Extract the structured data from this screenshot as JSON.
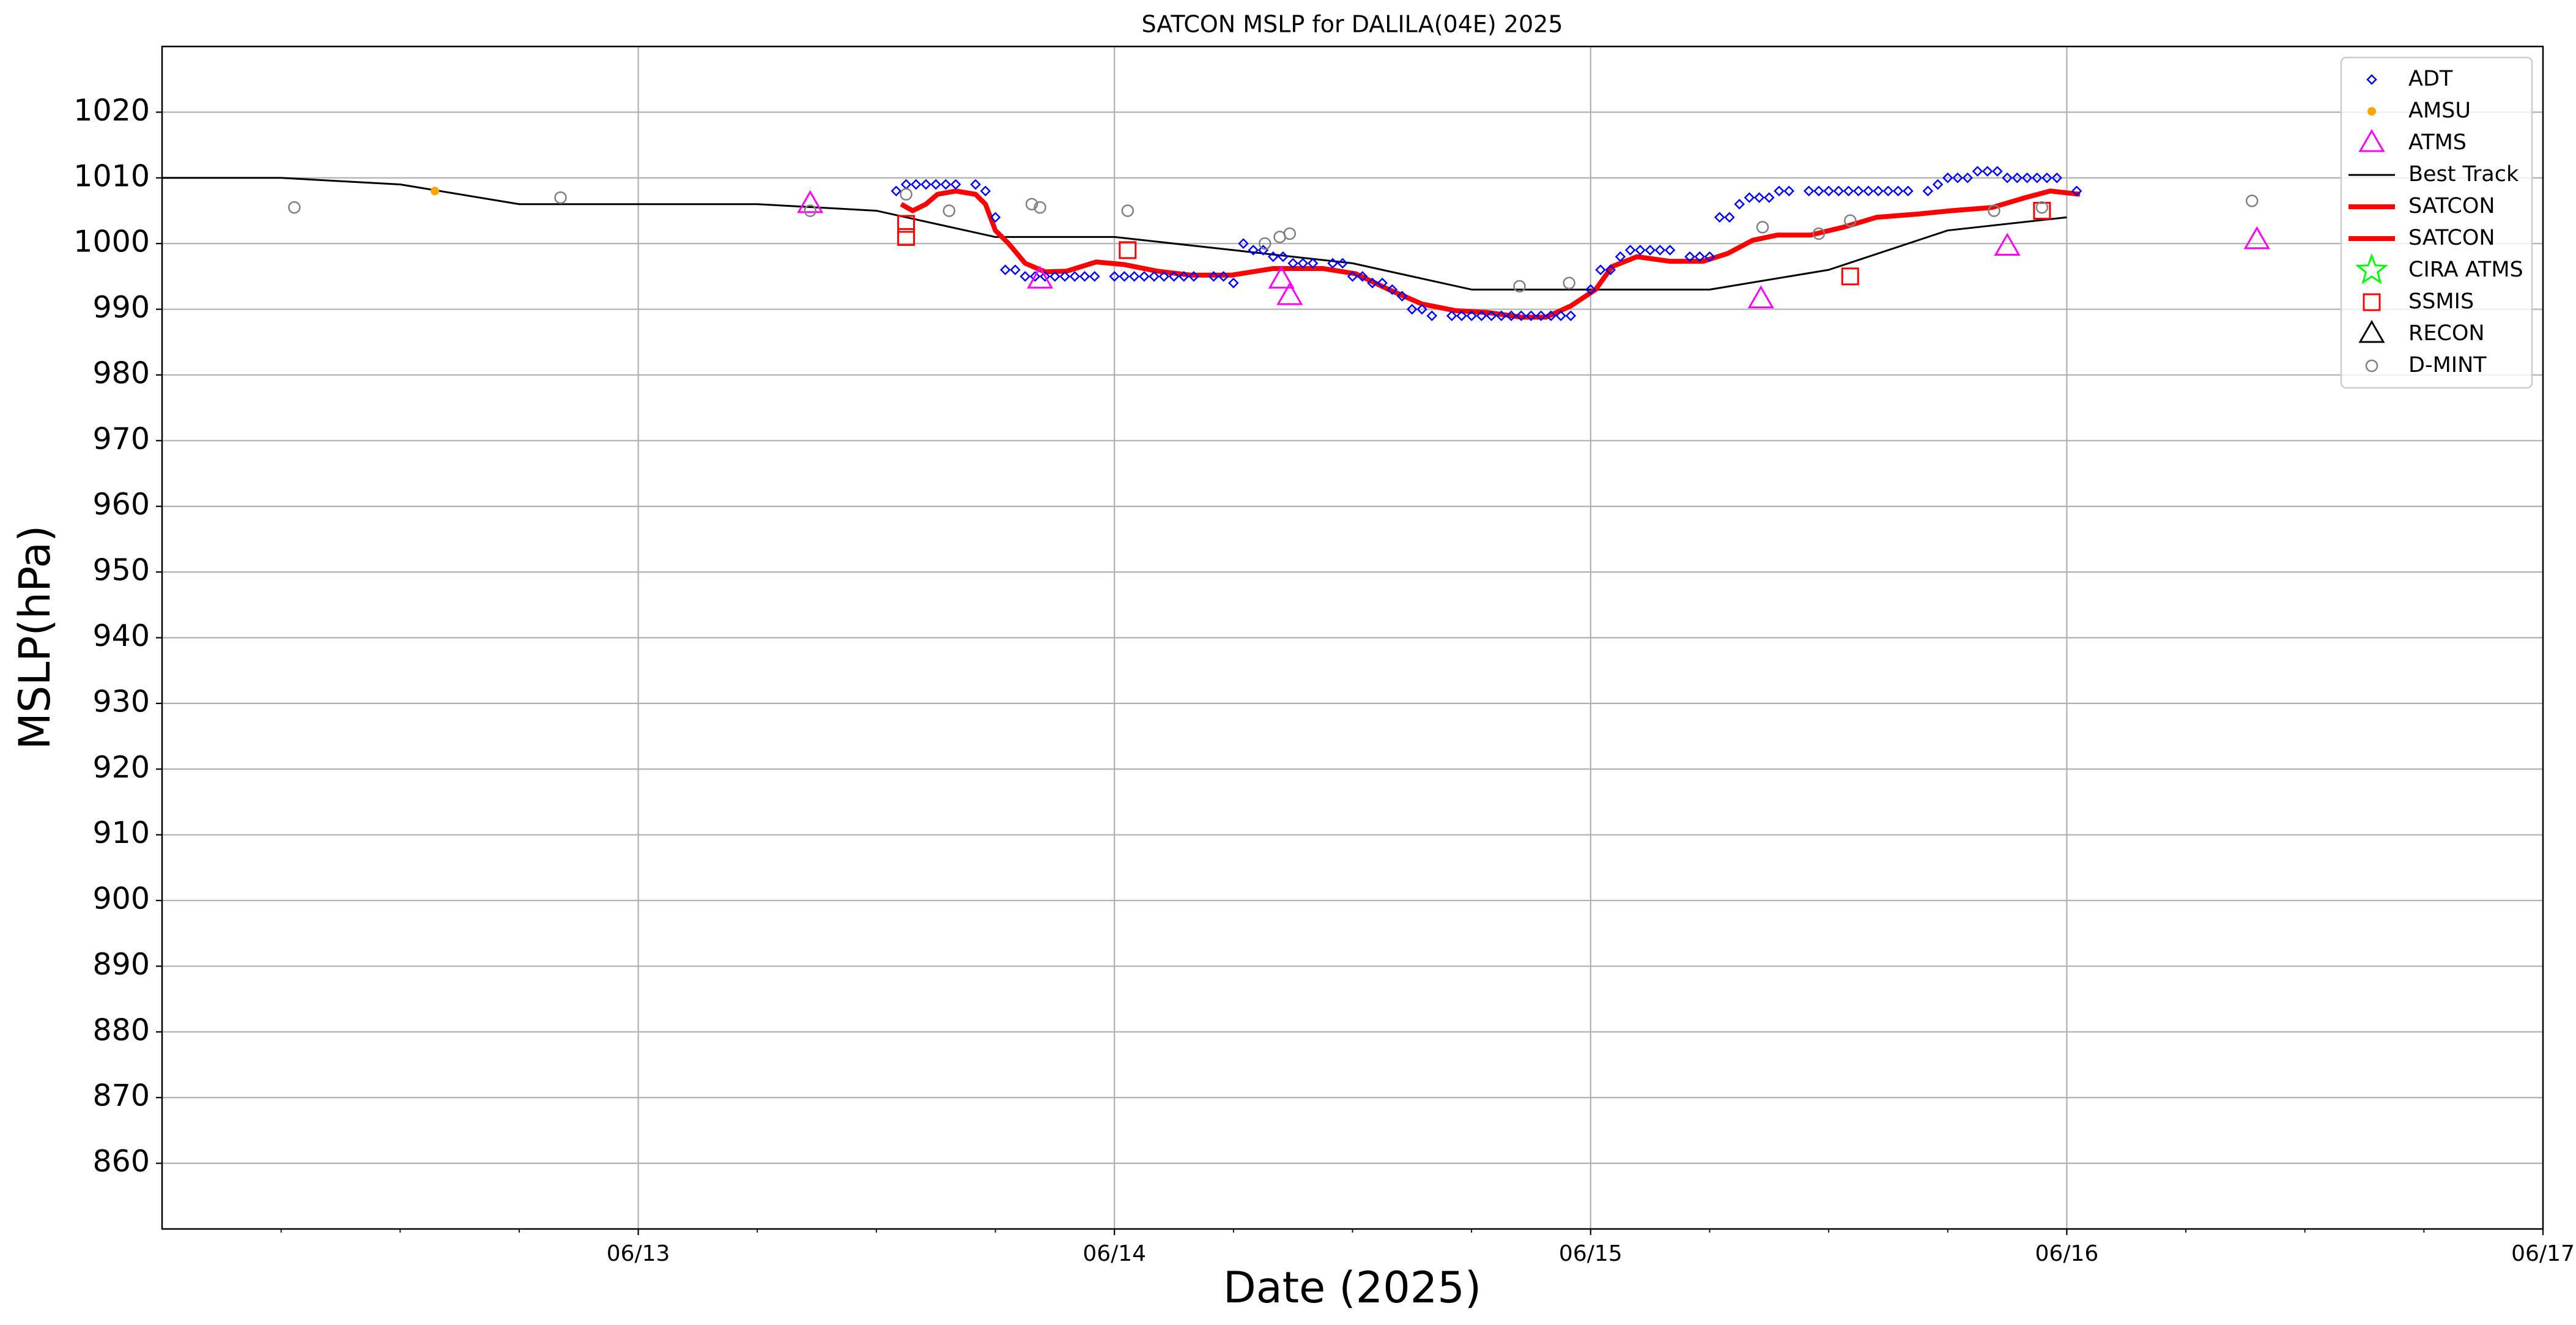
{
  "chart_data": {
    "type": "line",
    "title": "SATCON MSLP for DALILA(04E) 2025",
    "xlabel": "Date (2025)",
    "ylabel": "MSLP(hPa)",
    "xlim": [
      "06/12 00:00",
      "06/17 00:00"
    ],
    "xticks": [
      {
        "value": "06/13 00:00",
        "label": "06/13"
      },
      {
        "value": "06/14 00:00",
        "label": "06/14"
      },
      {
        "value": "06/15 00:00",
        "label": "06/15"
      },
      {
        "value": "06/16 00:00",
        "label": "06/16"
      },
      {
        "value": "06/17 00:00",
        "label": "06/17"
      }
    ],
    "xminorticks": [
      "06/12 06:00",
      "06/12 12:00",
      "06/12 18:00",
      "06/13 06:00",
      "06/13 12:00",
      "06/13 18:00",
      "06/14 06:00",
      "06/14 12:00",
      "06/14 18:00",
      "06/15 06:00",
      "06/15 12:00",
      "06/15 18:00",
      "06/16 06:00",
      "06/16 12:00",
      "06/16 18:00"
    ],
    "ylim": [
      850,
      1030
    ],
    "yticks": [
      860,
      870,
      880,
      890,
      900,
      910,
      920,
      930,
      940,
      950,
      960,
      970,
      980,
      990,
      1000,
      1010,
      1020
    ],
    "grid": true,
    "legend": "upper right",
    "series": [
      {
        "name": "ADT",
        "style": "marker",
        "marker": "diamond",
        "color": "#0000ff",
        "x": [
          "06/13 13:00",
          "06/13 13:30",
          "06/13 14:00",
          "06/13 14:30",
          "06/13 15:00",
          "06/13 15:30",
          "06/13 16:00",
          "06/13 17:00",
          "06/13 17:30",
          "06/13 18:00",
          "06/13 18:30",
          "06/13 19:00",
          "06/13 19:30",
          "06/13 20:00",
          "06/13 20:30",
          "06/13 21:00",
          "06/13 21:30",
          "06/13 22:00",
          "06/13 22:30",
          "06/13 23:00",
          "06/14 00:00",
          "06/14 00:30",
          "06/14 01:00",
          "06/14 01:30",
          "06/14 02:00",
          "06/14 02:30",
          "06/14 03:00",
          "06/14 03:30",
          "06/14 04:00",
          "06/14 05:00",
          "06/14 05:30",
          "06/14 06:00",
          "06/14 06:30",
          "06/14 07:00",
          "06/14 07:30",
          "06/14 08:00",
          "06/14 08:30",
          "06/14 09:00",
          "06/14 09:30",
          "06/14 10:00",
          "06/14 11:00",
          "06/14 11:30",
          "06/14 12:00",
          "06/14 12:30",
          "06/14 13:00",
          "06/14 13:30",
          "06/14 14:00",
          "06/14 14:30",
          "06/14 15:00",
          "06/14 15:30",
          "06/14 16:00",
          "06/14 17:00",
          "06/14 17:30",
          "06/14 18:00",
          "06/14 18:30",
          "06/14 19:00",
          "06/14 19:30",
          "06/14 20:00",
          "06/14 20:30",
          "06/14 21:00",
          "06/14 21:30",
          "06/14 22:00",
          "06/14 22:30",
          "06/14 23:00",
          "06/15 00:00",
          "06/15 00:30",
          "06/15 01:00",
          "06/15 01:30",
          "06/15 02:00",
          "06/15 02:30",
          "06/15 03:00",
          "06/15 03:30",
          "06/15 04:00",
          "06/15 05:00",
          "06/15 05:30",
          "06/15 06:00",
          "06/15 06:30",
          "06/15 07:00",
          "06/15 07:30",
          "06/15 08:00",
          "06/15 08:30",
          "06/15 09:00",
          "06/15 09:30",
          "06/15 10:00",
          "06/15 11:00",
          "06/15 11:30",
          "06/15 12:00",
          "06/15 12:30",
          "06/15 13:00",
          "06/15 13:30",
          "06/15 14:00",
          "06/15 14:30",
          "06/15 15:00",
          "06/15 15:30",
          "06/15 16:00",
          "06/15 17:00",
          "06/15 17:30",
          "06/15 18:00",
          "06/15 18:30",
          "06/15 19:00",
          "06/15 19:30",
          "06/15 20:00",
          "06/15 20:30",
          "06/15 21:00",
          "06/15 21:30",
          "06/15 22:00",
          "06/15 22:30",
          "06/15 23:00",
          "06/15 23:30",
          "06/16 00:30"
        ],
        "values": [
          1008,
          1009,
          1009,
          1009,
          1009,
          1009,
          1009,
          1009,
          1008,
          1004,
          996,
          996,
          995,
          995,
          995,
          995,
          995,
          995,
          995,
          995,
          995,
          995,
          995,
          995,
          995,
          995,
          995,
          995,
          995,
          995,
          995,
          994,
          1000,
          999,
          999,
          998,
          998,
          997,
          997,
          997,
          997,
          997,
          995,
          995,
          994,
          994,
          993,
          992,
          990,
          990,
          989,
          989,
          989,
          989,
          989,
          989,
          989,
          989,
          989,
          989,
          989,
          989,
          989,
          989,
          993,
          996,
          996,
          998,
          999,
          999,
          999,
          999,
          999,
          998,
          998,
          998,
          1004,
          1004,
          1006,
          1007,
          1007,
          1007,
          1008,
          1008,
          1008,
          1008,
          1008,
          1008,
          1008,
          1008,
          1008,
          1008,
          1008,
          1008,
          1008,
          1008,
          1009,
          1010,
          1010,
          1010,
          1011,
          1011,
          1011,
          1010,
          1010,
          1010,
          1010,
          1010,
          1010,
          1008
        ]
      },
      {
        "name": "AMSU",
        "style": "marker",
        "marker": "dot",
        "color": "#ffa500",
        "x": [
          "06/12 13:45"
        ],
        "values": [
          1008
        ]
      },
      {
        "name": "ATMS",
        "style": "marker",
        "marker": "triangle",
        "color": "#ff00ff",
        "x": [
          "06/13 08:40",
          "06/13 20:15",
          "06/14 08:25",
          "06/14 08:50",
          "06/15 08:35",
          "06/15 21:00",
          "06/16 09:35"
        ],
        "values": [
          1006,
          994.5,
          994.5,
          992,
          991.5,
          999.5,
          1000.5
        ]
      },
      {
        "name": "Best Track",
        "style": "line",
        "linewidth": 3,
        "color": "#000000",
        "x": [
          "06/12 00:00",
          "06/12 06:00",
          "06/12 12:00",
          "06/12 18:00",
          "06/13 00:00",
          "06/13 06:00",
          "06/13 12:00",
          "06/13 18:00",
          "06/14 00:00",
          "06/14 06:00",
          "06/14 12:00",
          "06/14 18:00",
          "06/15 00:00",
          "06/15 06:00",
          "06/15 12:00",
          "06/15 18:00",
          "06/16 00:00"
        ],
        "values": [
          1010,
          1010,
          1009,
          1006,
          1006,
          1006,
          1005,
          1001,
          1001,
          999,
          997,
          993,
          993,
          993,
          996,
          1002,
          1004
        ]
      },
      {
        "name": "SATCON",
        "style": "line",
        "linewidth": 8,
        "color": "#ff0000",
        "x": [
          "06/13 13:15",
          "06/13 13:50",
          "06/13 14:30",
          "06/13 15:05",
          "06/13 16:00",
          "06/13 17:00",
          "06/13 17:30",
          "06/13 18:00",
          "06/13 18:40",
          "06/13 19:30",
          "06/13 20:30",
          "06/13 21:35",
          "06/13 23:05",
          "06/14 00:30",
          "06/14 02:10",
          "06/14 03:50",
          "06/14 05:55",
          "06/14 08:00",
          "06/14 10:30",
          "06/14 12:10",
          "06/14 13:50",
          "06/14 15:30",
          "06/14 17:10",
          "06/14 18:50",
          "06/14 20:30",
          "06/14 21:45",
          "06/14 23:00",
          "06/15 00:15",
          "06/15 01:05",
          "06/15 02:20",
          "06/15 04:00",
          "06/15 05:40",
          "06/15 06:55",
          "06/15 08:10",
          "06/15 09:25",
          "06/15 11:05",
          "06/15 12:45",
          "06/15 14:25",
          "06/15 16:30",
          "06/15 18:10",
          "06/15 20:15",
          "06/15 21:55",
          "06/15 23:10",
          "06/16 00:40"
        ],
        "values": [
          1006,
          1005,
          1006,
          1007.5,
          1008,
          1007.5,
          1006,
          1002,
          1000,
          997,
          995.7,
          995.8,
          997.2,
          996.8,
          995.8,
          995.2,
          995.2,
          996.2,
          996.2,
          995.4,
          993,
          990.8,
          989.8,
          989.5,
          988.8,
          988.8,
          990.5,
          993,
          996.5,
          998,
          997.3,
          997.3,
          998.5,
          1000.5,
          1001.3,
          1001.3,
          1002.5,
          1004,
          1004.5,
          1005,
          1005.5,
          1007,
          1008,
          1007.5
        ]
      },
      {
        "name": "SATCON",
        "style": "line",
        "linewidth": 8,
        "color": "#ff0000",
        "x": [],
        "values": []
      },
      {
        "name": "CIRA ATMS",
        "style": "marker",
        "marker": "star",
        "color": "#00ff00",
        "x": [],
        "values": []
      },
      {
        "name": "SSMIS",
        "style": "marker",
        "marker": "square",
        "color": "#ff0000",
        "x": [
          "06/13 13:30",
          "06/13 13:30",
          "06/14 00:40",
          "06/15 13:05",
          "06/15 22:45"
        ],
        "values": [
          1003,
          1001,
          999,
          995,
          1005
        ]
      },
      {
        "name": "RECON",
        "style": "marker",
        "marker": "triangle",
        "color": "#000000",
        "x": [],
        "values": []
      },
      {
        "name": "D-MINT",
        "style": "marker",
        "marker": "circle",
        "color": "#808080",
        "x": [
          "06/12 06:40",
          "06/12 20:05",
          "06/13 08:40",
          "06/13 13:30",
          "06/13 15:40",
          "06/13 19:50",
          "06/13 20:15",
          "06/14 00:40",
          "06/14 07:35",
          "06/14 08:20",
          "06/14 08:50",
          "06/14 20:25",
          "06/14 22:55",
          "06/15 08:40",
          "06/15 11:30",
          "06/15 13:05",
          "06/15 20:20",
          "06/15 22:45",
          "06/16 09:20"
        ],
        "values": [
          1005.5,
          1007,
          1005,
          1007.5,
          1005,
          1006,
          1005.5,
          1005,
          1000,
          1001,
          1001.5,
          993.5,
          994,
          1002.5,
          1001.5,
          1003.5,
          1005,
          1005.5,
          1006.5
        ]
      }
    ]
  }
}
